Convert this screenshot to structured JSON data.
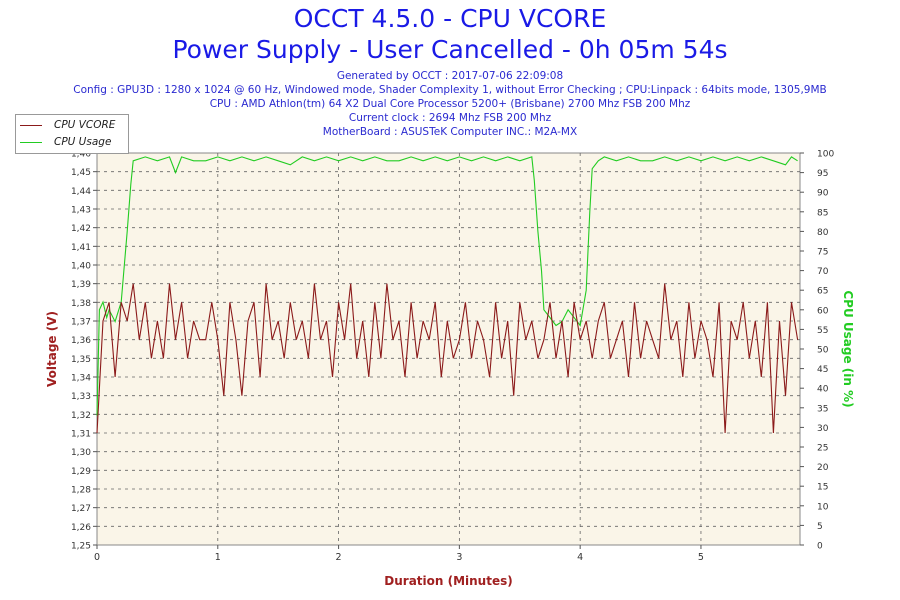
{
  "header": {
    "title": "OCCT 4.5.0 - CPU VCORE",
    "subtitle": "Power Supply - User Cancelled - 0h 05m 54s",
    "info": [
      "Generated by OCCT : 2017-07-06 22:09:08",
      "Config : GPU3D : 1280 x 1024 @ 60 Hz, Windowed mode, Shader Complexity 1, without Error Checking ; CPU:Linpack : 64bits mode, 1305,9MB",
      "CPU : AMD Athlon(tm) 64 X2 Dual Core Processor 5200+ (Brisbane) 2700 Mhz FSB 200 Mhz",
      "Current clock : 2694 Mhz FSB 200 Mhz",
      "MotherBoard : ASUSTeK Computer INC.: M2A-MX"
    ]
  },
  "colors": {
    "vcore": "#8b1a1a",
    "usage": "#22cc22",
    "plot_bg": "#faf5e8",
    "grid": "#666666",
    "title": "#1a1ae6",
    "axis_label_left": "#a02020",
    "axis_label_right": "#22cc22"
  },
  "chart_data": {
    "type": "line",
    "title": "OCCT 4.5.0 - CPU VCORE",
    "xlabel": "Duration (Minutes)",
    "ylabel_left": "Voltage (V)",
    "ylabel_right": "CPU Usage (in %)",
    "xlim": [
      0,
      5.82
    ],
    "ylim_left": [
      1.25,
      1.46
    ],
    "ylim_right": [
      0,
      100
    ],
    "x_ticks": [
      "0",
      "1",
      "2",
      "3",
      "4",
      "5"
    ],
    "y_left_ticks": [
      "1,25",
      "1,26",
      "1,27",
      "1,28",
      "1,29",
      "1,30",
      "1,31",
      "1,32",
      "1,33",
      "1,34",
      "1,35",
      "1,36",
      "1,37",
      "1,38",
      "1,39",
      "1,40",
      "1,41",
      "1,42",
      "1,43",
      "1,44",
      "1,45",
      "1,46"
    ],
    "y_right_ticks": [
      "0",
      "5",
      "10",
      "15",
      "20",
      "25",
      "30",
      "35",
      "40",
      "45",
      "50",
      "55",
      "60",
      "65",
      "70",
      "75",
      "80",
      "85",
      "90",
      "95",
      "100"
    ],
    "grid": true,
    "legend_position": "top-left",
    "series": [
      {
        "name": "CPU VCORE",
        "x": [
          0,
          0.05,
          0.1,
          0.15,
          0.2,
          0.25,
          0.3,
          0.35,
          0.4,
          0.45,
          0.5,
          0.55,
          0.6,
          0.65,
          0.7,
          0.75,
          0.8,
          0.85,
          0.9,
          0.95,
          1.0,
          1.05,
          1.1,
          1.15,
          1.2,
          1.25,
          1.3,
          1.35,
          1.4,
          1.45,
          1.5,
          1.55,
          1.6,
          1.65,
          1.7,
          1.75,
          1.8,
          1.85,
          1.9,
          1.95,
          2.0,
          2.05,
          2.1,
          2.15,
          2.2,
          2.25,
          2.3,
          2.35,
          2.4,
          2.45,
          2.5,
          2.55,
          2.6,
          2.65,
          2.7,
          2.75,
          2.8,
          2.85,
          2.9,
          2.95,
          3.0,
          3.05,
          3.1,
          3.15,
          3.2,
          3.25,
          3.3,
          3.35,
          3.4,
          3.45,
          3.5,
          3.55,
          3.6,
          3.65,
          3.7,
          3.75,
          3.8,
          3.85,
          3.9,
          3.95,
          4.0,
          4.05,
          4.1,
          4.15,
          4.2,
          4.25,
          4.3,
          4.35,
          4.4,
          4.45,
          4.5,
          4.55,
          4.6,
          4.65,
          4.7,
          4.75,
          4.8,
          4.85,
          4.9,
          4.95,
          5.0,
          5.05,
          5.1,
          5.15,
          5.2,
          5.25,
          5.3,
          5.35,
          5.4,
          5.45,
          5.5,
          5.55,
          5.6,
          5.65,
          5.7,
          5.75,
          5.8
        ],
        "values": [
          1.31,
          1.37,
          1.38,
          1.34,
          1.38,
          1.37,
          1.39,
          1.36,
          1.38,
          1.35,
          1.37,
          1.35,
          1.39,
          1.36,
          1.38,
          1.35,
          1.37,
          1.36,
          1.36,
          1.38,
          1.36,
          1.33,
          1.38,
          1.36,
          1.33,
          1.37,
          1.38,
          1.34,
          1.39,
          1.36,
          1.37,
          1.35,
          1.38,
          1.36,
          1.37,
          1.35,
          1.39,
          1.36,
          1.37,
          1.34,
          1.38,
          1.36,
          1.39,
          1.35,
          1.37,
          1.34,
          1.38,
          1.35,
          1.39,
          1.36,
          1.37,
          1.34,
          1.38,
          1.35,
          1.37,
          1.36,
          1.38,
          1.34,
          1.37,
          1.35,
          1.36,
          1.38,
          1.35,
          1.37,
          1.36,
          1.34,
          1.38,
          1.35,
          1.37,
          1.33,
          1.38,
          1.36,
          1.37,
          1.35,
          1.36,
          1.38,
          1.35,
          1.37,
          1.34,
          1.38,
          1.36,
          1.37,
          1.35,
          1.37,
          1.38,
          1.35,
          1.36,
          1.37,
          1.34,
          1.38,
          1.35,
          1.37,
          1.36,
          1.35,
          1.39,
          1.36,
          1.37,
          1.34,
          1.38,
          1.35,
          1.37,
          1.36,
          1.34,
          1.38,
          1.31,
          1.37,
          1.36,
          1.38,
          1.35,
          1.37,
          1.34,
          1.38,
          1.31,
          1.37,
          1.33,
          1.38,
          1.36
        ]
      },
      {
        "name": "CPU Usage",
        "x": [
          0,
          0.02,
          0.05,
          0.08,
          0.1,
          0.15,
          0.2,
          0.25,
          0.28,
          0.3,
          0.4,
          0.5,
          0.6,
          0.65,
          0.7,
          0.8,
          0.9,
          1.0,
          1.1,
          1.2,
          1.3,
          1.4,
          1.5,
          1.6,
          1.7,
          1.8,
          1.9,
          2.0,
          2.1,
          2.2,
          2.3,
          2.4,
          2.5,
          2.6,
          2.7,
          2.8,
          2.9,
          3.0,
          3.1,
          3.2,
          3.3,
          3.4,
          3.5,
          3.6,
          3.62,
          3.65,
          3.68,
          3.7,
          3.75,
          3.8,
          3.85,
          3.9,
          3.95,
          4.0,
          4.05,
          4.08,
          4.1,
          4.15,
          4.2,
          4.3,
          4.4,
          4.5,
          4.6,
          4.7,
          4.8,
          4.9,
          5.0,
          5.1,
          5.2,
          5.3,
          5.4,
          5.5,
          5.6,
          5.7,
          5.75,
          5.8
        ],
        "values": [
          33,
          60,
          62,
          58,
          60,
          57,
          62,
          80,
          92,
          98,
          99,
          98,
          99,
          95,
          99,
          98,
          98,
          99,
          98,
          99,
          98,
          99,
          98,
          97,
          99,
          98,
          99,
          98,
          99,
          98,
          99,
          98,
          98,
          99,
          98,
          99,
          98,
          99,
          98,
          99,
          98,
          99,
          98,
          99,
          93,
          80,
          70,
          60,
          58,
          56,
          57,
          60,
          58,
          56,
          65,
          85,
          96,
          98,
          99,
          98,
          99,
          98,
          98,
          99,
          98,
          99,
          98,
          99,
          98,
          99,
          98,
          99,
          98,
          97,
          99,
          98
        ]
      }
    ]
  }
}
